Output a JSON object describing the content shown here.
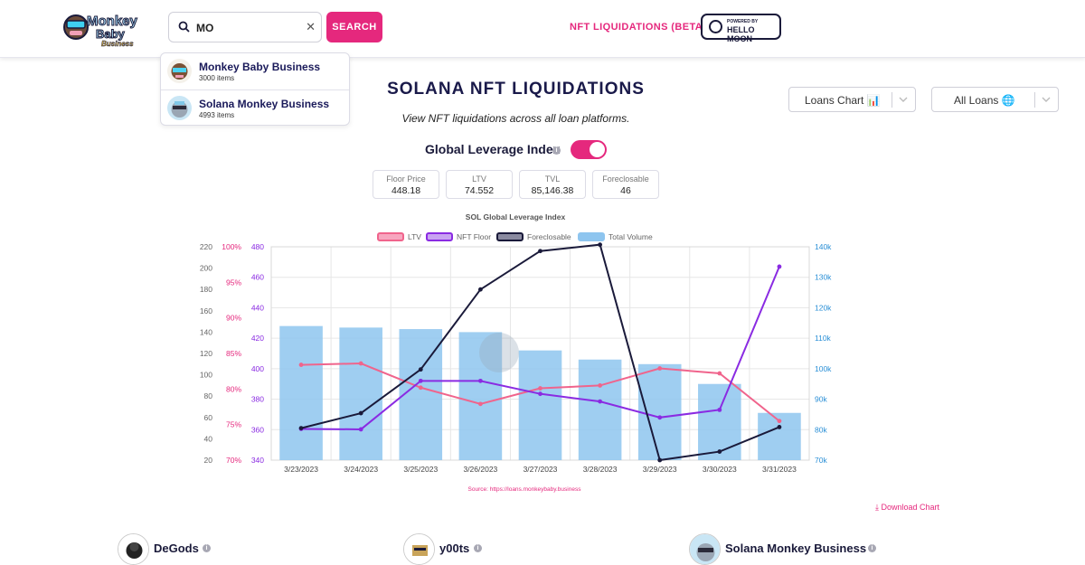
{
  "header": {
    "logo_text": "Monkey Baby Business",
    "search": {
      "value": "MO",
      "button_label": "SEARCH"
    },
    "nav_link": "NFT LIQUIDATIONS (BETA)",
    "powered_by": "POWERED BY",
    "powered_name": "HELLO MOON"
  },
  "search_results": [
    {
      "name": "Monkey Baby Business",
      "count": "3000 items"
    },
    {
      "name": "Solana Monkey Business",
      "count": "4993 items"
    }
  ],
  "main": {
    "title": "SOLANA NFT LIQUIDATIONS",
    "subtitle": "View NFT liquidations across all loan platforms.",
    "chart_select": "Loans Chart 📊",
    "loans_select": "All Loans 🌐",
    "gli_label": "Global Leverage Index",
    "gli_enabled": true,
    "stats": [
      {
        "label": "Floor Price",
        "value": "448.18"
      },
      {
        "label": "LTV",
        "value": "74.552"
      },
      {
        "label": "TVL",
        "value": "85,146.38"
      },
      {
        "label": "Foreclosable",
        "value": "46"
      }
    ],
    "download_label": "Download Chart"
  },
  "chart_data": {
    "type": "bar",
    "title": "SOL Global Leverage Index",
    "source": "Source: https://loans.monkeybaby.business",
    "categories": [
      "3/23/2023",
      "3/24/2023",
      "3/25/2023",
      "3/26/2023",
      "3/27/2023",
      "3/28/2023",
      "3/29/2023",
      "3/30/2023",
      "3/31/2023"
    ],
    "legend": [
      "LTV",
      "NFT Floor",
      "Foreclosable",
      "Total Volume"
    ],
    "series": [
      {
        "name": "Total Volume",
        "kind": "bar",
        "axis": "right",
        "color": "#8ec5ef",
        "values": [
          114000,
          113500,
          113000,
          112000,
          106000,
          103000,
          101500,
          95000,
          85500
        ]
      },
      {
        "name": "LTV",
        "kind": "line",
        "axis": "ltv",
        "color": "#f0648c",
        "values": [
          83.4,
          83.6,
          80.2,
          77.9,
          80.1,
          80.5,
          82.9,
          82.2,
          75.5
        ]
      },
      {
        "name": "NFT Floor",
        "kind": "line",
        "axis": "floor",
        "color": "#8a2be2",
        "values": [
          360.5,
          360.2,
          392,
          392,
          383.5,
          378.5,
          368,
          373,
          467
        ]
      },
      {
        "name": "Foreclosable",
        "kind": "line",
        "axis": "left",
        "color": "#1a1a3a",
        "values": [
          50,
          64,
          105,
          180,
          216,
          222,
          20,
          28,
          51
        ]
      }
    ],
    "axes": {
      "left": {
        "range": [
          20,
          220
        ],
        "ticks": [
          "20",
          "40",
          "60",
          "80",
          "100",
          "120",
          "140",
          "160",
          "180",
          "200",
          "220"
        ]
      },
      "ltv": {
        "range": [
          70,
          100
        ],
        "ticks": [
          "70%",
          "75%",
          "80%",
          "85%",
          "90%",
          "95%",
          "100%"
        ]
      },
      "floor": {
        "range": [
          340,
          480
        ],
        "ticks": [
          "340",
          "360",
          "380",
          "400",
          "420",
          "440",
          "460",
          "480"
        ]
      },
      "right": {
        "range": [
          70000,
          140000
        ],
        "ticks": [
          "70k",
          "80k",
          "90k",
          "100k",
          "110k",
          "120k",
          "130k",
          "140k"
        ]
      }
    },
    "grid": true,
    "legend_position": "top"
  },
  "collections": [
    {
      "name": "DeGods"
    },
    {
      "name": "y00ts"
    },
    {
      "name": "Solana Monkey Business"
    }
  ]
}
